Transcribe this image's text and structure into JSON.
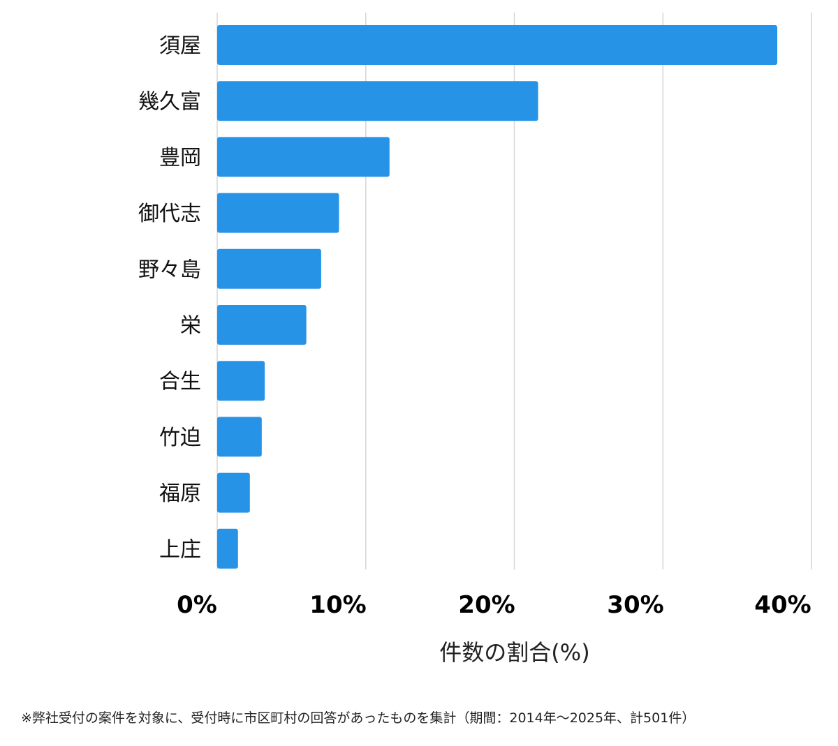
{
  "chart_data": {
    "type": "bar",
    "orientation": "horizontal",
    "categories": [
      "須屋",
      "幾久富",
      "豊岡",
      "御代志",
      "野々島",
      "栄",
      "合生",
      "竹迫",
      "福原",
      "上庄"
    ],
    "values": [
      37.7,
      21.6,
      11.6,
      8.2,
      7.0,
      6.0,
      3.2,
      3.0,
      2.2,
      1.4
    ],
    "xlim": [
      0,
      40
    ],
    "xticks": [
      0,
      10,
      20,
      30,
      40
    ],
    "xtick_labels": [
      "0%",
      "10%",
      "20%",
      "30%",
      "40%"
    ],
    "xlabel": "件数の割合(%)",
    "grid": "vertical",
    "bar_color": "#2793e6",
    "grid_color": "#d6d6d6"
  },
  "footnote": "※弊社受付の案件を対象に、受付時に市区町村の回答があったものを集計（期間：2014年～2025年、計501件）"
}
